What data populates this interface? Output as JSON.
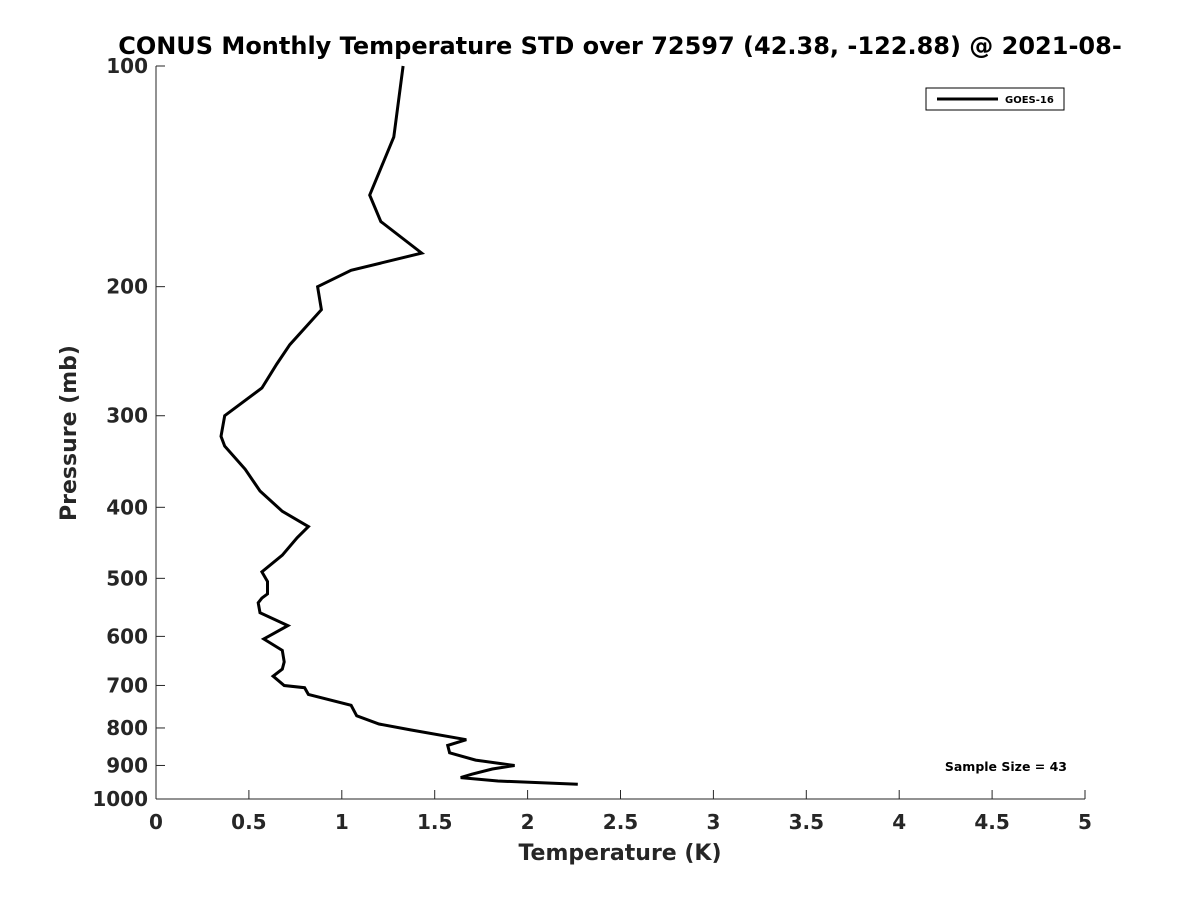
{
  "chart_data": {
    "type": "line",
    "title": "CONUS Monthly Temperature STD over 72597 (42.38, -122.88) @ 2021-08-",
    "xlabel": "Temperature (K)",
    "ylabel": "Pressure (mb)",
    "xlim": [
      0,
      5
    ],
    "ylim": [
      100,
      1000
    ],
    "yscale": "log",
    "y_reversed": true,
    "grid": false,
    "legend_position": "top-right",
    "x_ticks": [
      "0",
      "0.5",
      "1",
      "1.5",
      "2",
      "2.5",
      "3",
      "3.5",
      "4",
      "4.5",
      "5"
    ],
    "y_ticks": [
      "100",
      "200",
      "300",
      "400",
      "500",
      "600",
      "700",
      "800",
      "900",
      "1000"
    ],
    "series": [
      {
        "name": "GOES-16",
        "color": "#000000",
        "points": [
          [
            1.33,
            100
          ],
          [
            1.28,
            125
          ],
          [
            1.15,
            150
          ],
          [
            1.21,
            163
          ],
          [
            1.43,
            180
          ],
          [
            1.05,
            190
          ],
          [
            0.87,
            200
          ],
          [
            0.89,
            215
          ],
          [
            0.72,
            240
          ],
          [
            0.65,
            255
          ],
          [
            0.57,
            275
          ],
          [
            0.37,
            300
          ],
          [
            0.35,
            320
          ],
          [
            0.37,
            330
          ],
          [
            0.48,
            355
          ],
          [
            0.56,
            380
          ],
          [
            0.68,
            405
          ],
          [
            0.82,
            425
          ],
          [
            0.76,
            440
          ],
          [
            0.68,
            465
          ],
          [
            0.57,
            490
          ],
          [
            0.6,
            505
          ],
          [
            0.6,
            525
          ],
          [
            0.57,
            532
          ],
          [
            0.55,
            540
          ],
          [
            0.56,
            557
          ],
          [
            0.71,
            580
          ],
          [
            0.58,
            605
          ],
          [
            0.68,
            627
          ],
          [
            0.69,
            650
          ],
          [
            0.68,
            665
          ],
          [
            0.63,
            680
          ],
          [
            0.69,
            700
          ],
          [
            0.8,
            705
          ],
          [
            0.82,
            720
          ],
          [
            1.05,
            745
          ],
          [
            1.08,
            770
          ],
          [
            1.2,
            790
          ],
          [
            1.37,
            805
          ],
          [
            1.67,
            830
          ],
          [
            1.57,
            845
          ],
          [
            1.58,
            865
          ],
          [
            1.72,
            885
          ],
          [
            1.93,
            900
          ],
          [
            1.81,
            910
          ],
          [
            1.7,
            925
          ],
          [
            1.64,
            935
          ],
          [
            1.84,
            945
          ],
          [
            2.27,
            955
          ]
        ]
      }
    ],
    "annotations": [
      "Sample Size = 43"
    ]
  }
}
